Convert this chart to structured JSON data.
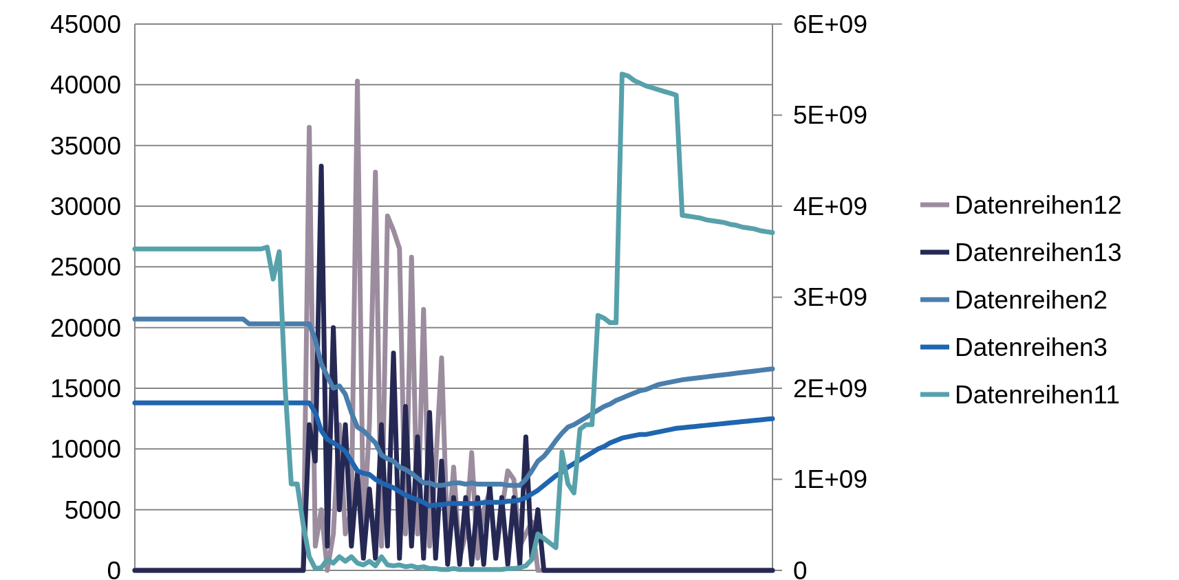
{
  "chart_data": {
    "type": "line",
    "categories": [
      null,
      null,
      null,
      null,
      null,
      null,
      null,
      null,
      null,
      null,
      null,
      null,
      null,
      null,
      null,
      null,
      null,
      null,
      null,
      null,
      null,
      null,
      null,
      null,
      null,
      null,
      null,
      null,
      null,
      null,
      null,
      null,
      null,
      null,
      null,
      null,
      null,
      null,
      null,
      null,
      null,
      null,
      null,
      null,
      null,
      null,
      null,
      null,
      null,
      null,
      null,
      null,
      null,
      null,
      null,
      null,
      null,
      null,
      null,
      null,
      null,
      null,
      null,
      null,
      null,
      null,
      null,
      null,
      null,
      null,
      null,
      null,
      null,
      null,
      null,
      null,
      null,
      null,
      null,
      null,
      null,
      null,
      null,
      null,
      null,
      null,
      null,
      null,
      null,
      null,
      null,
      null,
      null,
      null,
      null,
      null,
      null,
      null,
      null,
      null,
      null,
      null,
      null,
      null,
      null,
      null,
      null
    ],
    "series": [
      {
        "name": "Datenreihen12",
        "color": "#9b8c9e",
        "values": [
          0,
          0,
          0,
          0,
          0,
          0,
          0,
          0,
          0,
          0,
          0,
          0,
          0,
          0,
          0,
          0,
          0,
          0,
          0,
          0,
          0,
          0,
          0,
          0,
          0,
          0,
          0,
          0,
          0,
          36500,
          2000,
          5000,
          0,
          3000,
          12000,
          3000,
          5000,
          40300,
          3000,
          12000,
          32800,
          2000,
          29200,
          28000,
          26500,
          3000,
          25800,
          3000,
          21500,
          2000,
          8500,
          17500,
          2000,
          8500,
          1000,
          3000,
          9700,
          1000,
          5000,
          6500,
          1000,
          5000,
          8200,
          7500,
          2000,
          3000,
          4000,
          0,
          0,
          0,
          0,
          0,
          0,
          0,
          0,
          0,
          0,
          0,
          0,
          0,
          0,
          0,
          0,
          0,
          0,
          0,
          0,
          0,
          0,
          0,
          0,
          0,
          0,
          0,
          0,
          0,
          0,
          0,
          0,
          0,
          0,
          0,
          0,
          0,
          0,
          0,
          0
        ]
      },
      {
        "name": "Datenreihen13",
        "color": "#262854",
        "values": [
          0,
          0,
          0,
          0,
          0,
          0,
          0,
          0,
          0,
          0,
          0,
          0,
          0,
          0,
          0,
          0,
          0,
          0,
          0,
          0,
          0,
          0,
          0,
          0,
          0,
          0,
          0,
          0,
          0,
          12000,
          9000,
          33300,
          2000,
          20000,
          5000,
          12000,
          2000,
          8000,
          1000,
          6700,
          1000,
          12000,
          2000,
          17900,
          1000,
          13500,
          2000,
          11000,
          1000,
          13000,
          1000,
          9000,
          500,
          6000,
          500,
          6000,
          500,
          6000,
          500,
          7000,
          1000,
          6000,
          500,
          6000,
          500,
          11000,
          1000,
          5000,
          0,
          0,
          0,
          0,
          0,
          0,
          0,
          0,
          0,
          0,
          0,
          0,
          0,
          0,
          0,
          0,
          0,
          0,
          0,
          0,
          0,
          0,
          0,
          0,
          0,
          0,
          0,
          0,
          0,
          0,
          0,
          0,
          0,
          0,
          0,
          0,
          0,
          0,
          0
        ]
      },
      {
        "name": "Datenreihen2",
        "color": "#4a7eac",
        "values": [
          20700,
          20700,
          20700,
          20700,
          20700,
          20700,
          20700,
          20700,
          20700,
          20700,
          20700,
          20700,
          20700,
          20700,
          20700,
          20700,
          20700,
          20700,
          20700,
          20300,
          20300,
          20300,
          20300,
          20300,
          20300,
          20300,
          20300,
          20300,
          20300,
          20300,
          19000,
          17000,
          16000,
          15000,
          15200,
          14500,
          13000,
          11800,
          11500,
          11000,
          10500,
          9500,
          9200,
          9000,
          8500,
          8300,
          8000,
          7600,
          7200,
          7200,
          7000,
          7000,
          7100,
          7200,
          7200,
          7100,
          7200,
          7100,
          7100,
          7100,
          7100,
          7100,
          7000,
          7000,
          7000,
          7500,
          8200,
          9000,
          9400,
          10000,
          10700,
          11300,
          11800,
          12000,
          12300,
          12600,
          12900,
          13200,
          13500,
          13700,
          14000,
          14200,
          14400,
          14600,
          14800,
          14900,
          15100,
          15300,
          15400,
          15500,
          15600,
          15700,
          15760,
          15820,
          15880,
          15940,
          16000,
          16060,
          16120,
          16180,
          16240,
          16300,
          16360,
          16420,
          16480,
          16540,
          16600
        ]
      },
      {
        "name": "Datenreihen3",
        "color": "#1f65b0",
        "values": [
          13800,
          13800,
          13800,
          13800,
          13800,
          13800,
          13800,
          13800,
          13800,
          13800,
          13800,
          13800,
          13800,
          13800,
          13800,
          13800,
          13800,
          13800,
          13800,
          13800,
          13800,
          13800,
          13800,
          13800,
          13800,
          13800,
          13800,
          13800,
          13800,
          13800,
          13000,
          11500,
          10800,
          10500,
          10200,
          9800,
          9000,
          8200,
          8000,
          7900,
          7500,
          7200,
          7000,
          6800,
          6500,
          6200,
          6000,
          5800,
          5600,
          5300,
          5400,
          5400,
          5500,
          5500,
          5500,
          5500,
          5500,
          5500,
          5600,
          5600,
          5600,
          5600,
          5700,
          5700,
          5800,
          6000,
          6300,
          6600,
          7000,
          7400,
          7800,
          8100,
          8500,
          8800,
          9100,
          9400,
          9700,
          10000,
          10200,
          10500,
          10700,
          10900,
          11000,
          11100,
          11200,
          11200,
          11300,
          11400,
          11500,
          11600,
          11700,
          11750,
          11800,
          11850,
          11900,
          11950,
          12000,
          12050,
          12100,
          12150,
          12200,
          12250,
          12300,
          12350,
          12400,
          12450,
          12500
        ]
      },
      {
        "name": "Datenreihen11",
        "color": "#57a1ab",
        "axis": "y2",
        "values": [
          3530000000.0,
          3530000000.0,
          3530000000.0,
          3530000000.0,
          3530000000.0,
          3530000000.0,
          3530000000.0,
          3530000000.0,
          3530000000.0,
          3530000000.0,
          3530000000.0,
          3530000000.0,
          3530000000.0,
          3530000000.0,
          3530000000.0,
          3530000000.0,
          3530000000.0,
          3530000000.0,
          3530000000.0,
          3530000000.0,
          3530000000.0,
          3530000000.0,
          3550000000.0,
          3200000000.0,
          3500000000.0,
          2000000000.0,
          950000000.0,
          950000000.0,
          500000000.0,
          150000000.0,
          20000000.0,
          30000000.0,
          120000000.0,
          80000000.0,
          150000000.0,
          100000000.0,
          150000000.0,
          80000000.0,
          60000000.0,
          100000000.0,
          50000000.0,
          150000000.0,
          60000000.0,
          50000000.0,
          60000000.0,
          40000000.0,
          50000000.0,
          30000000.0,
          40000000.0,
          20000000.0,
          20000000.0,
          10000000.0,
          10000000.0,
          20000000.0,
          10000000.0,
          10000000.0,
          10000000.0,
          10000000.0,
          10000000.0,
          10000000.0,
          10000000.0,
          10000000.0,
          20000000.0,
          20000000.0,
          30000000.0,
          50000000.0,
          120000000.0,
          400000000.0,
          350000000.0,
          300000000.0,
          250000000.0,
          1300000000.0,
          950000000.0,
          850000000.0,
          1550000000.0,
          1600000000.0,
          1600000000.0,
          2800000000.0,
          2770000000.0,
          2720000000.0,
          2720000000.0,
          5450000000.0,
          5430000000.0,
          5380000000.0,
          5350000000.0,
          5320000000.0,
          5300000000.0,
          5280000000.0,
          5260000000.0,
          5240000000.0,
          5220000000.0,
          3900000000.0,
          3890000000.0,
          3880000000.0,
          3870000000.0,
          3850000000.0,
          3840000000.0,
          3830000000.0,
          3820000000.0,
          3800000000.0,
          3790000000.0,
          3770000000.0,
          3760000000.0,
          3750000000.0,
          3730000000.0,
          3720000000.0,
          3710000000.0
        ]
      }
    ],
    "ylim": [
      0,
      45000
    ],
    "yticks": [
      0,
      5000,
      10000,
      15000,
      20000,
      25000,
      30000,
      35000,
      40000,
      45000
    ],
    "y2lim": [
      0,
      6000000000
    ],
    "y2ticks": [
      0,
      {
        "value": 1000000000,
        "label": "1E+09"
      },
      {
        "value": 2000000000,
        "label": "2E+09"
      },
      {
        "value": 3000000000,
        "label": "3E+09"
      },
      {
        "value": 4000000000,
        "label": "4E+09"
      },
      {
        "value": 5000000000,
        "label": "5E+09"
      },
      {
        "value": 6000000000,
        "label": "6E+09"
      }
    ],
    "grid": "y",
    "legend": "right",
    "line_style": "solid",
    "marker": "none"
  }
}
